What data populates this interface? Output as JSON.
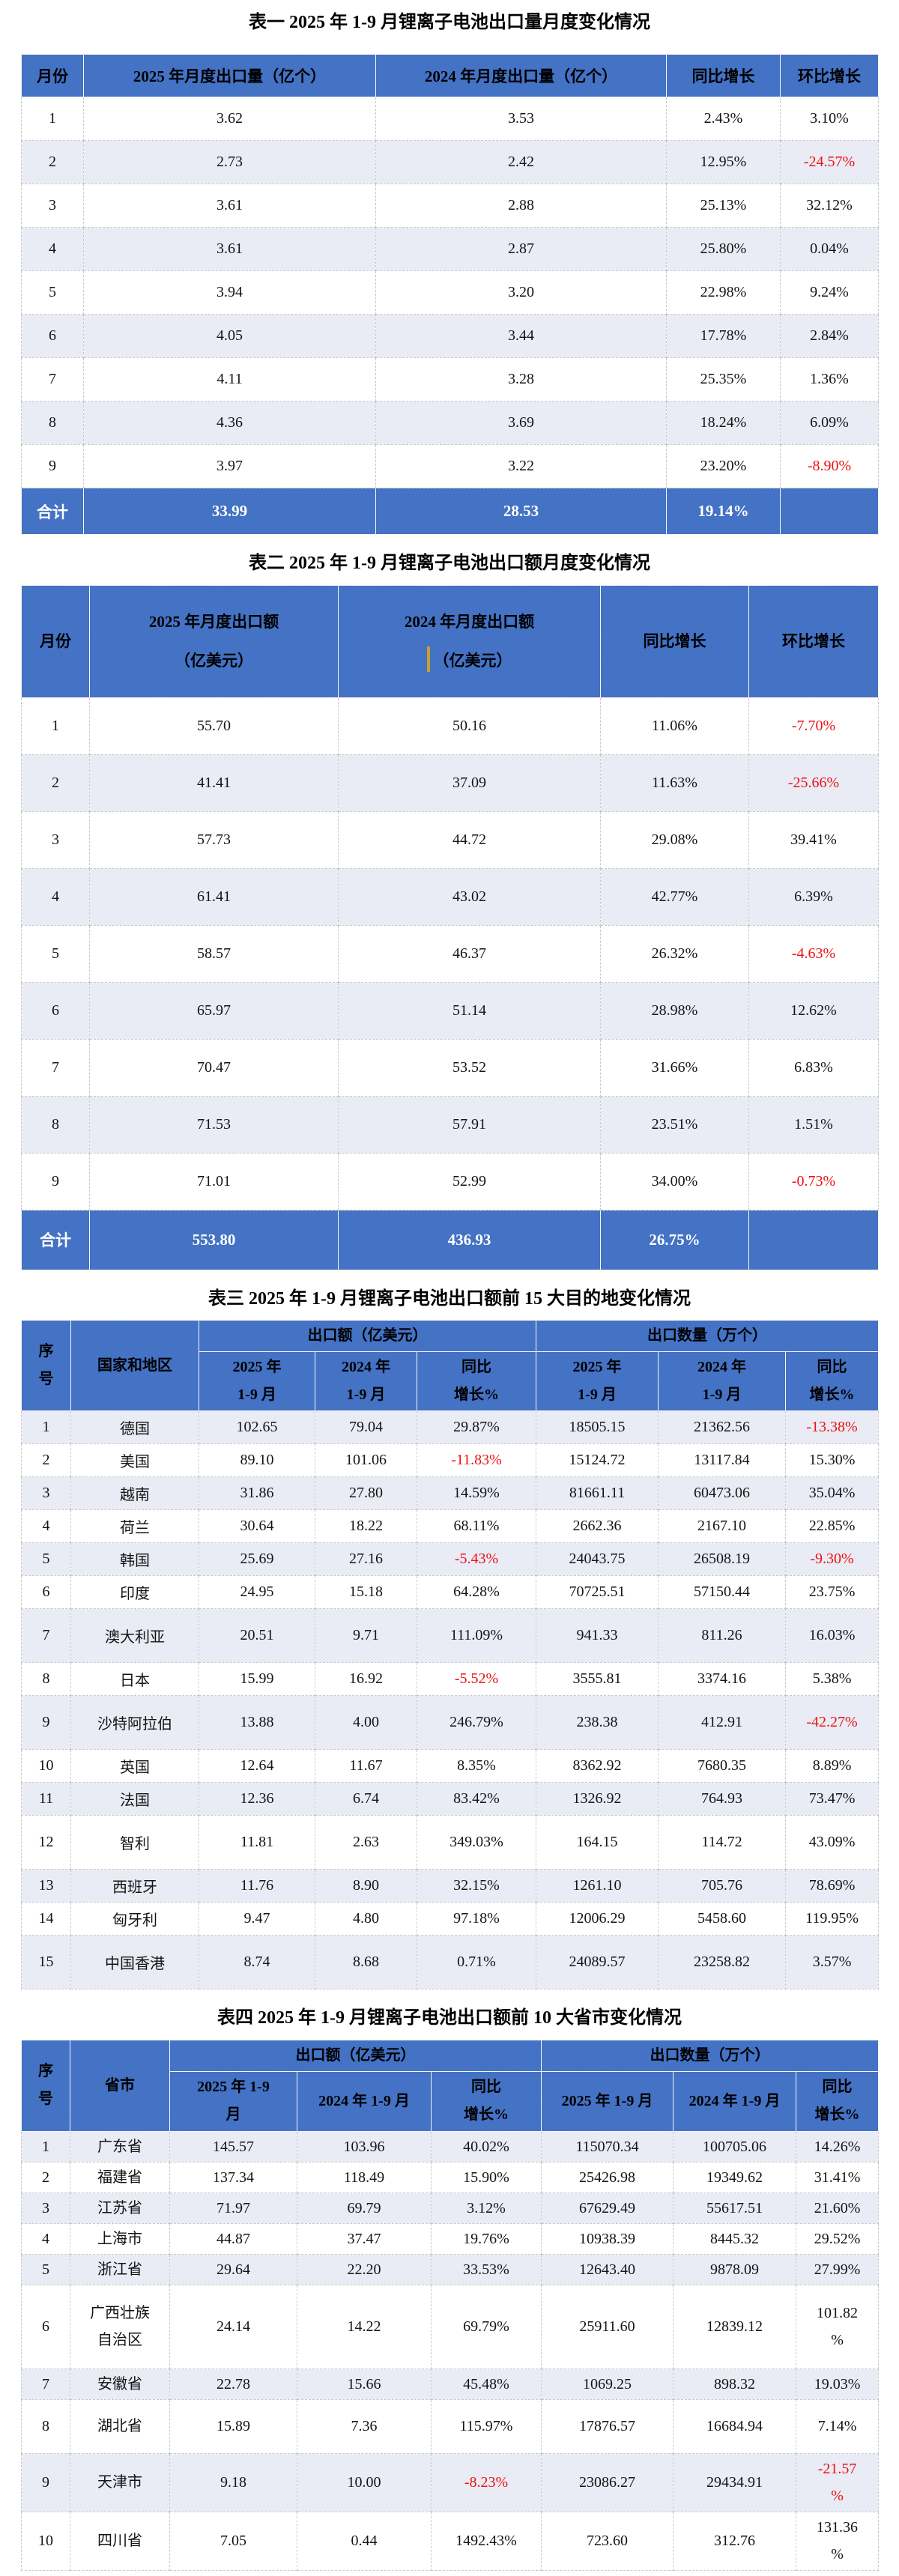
{
  "colors": {
    "header_blue": "#4472C4",
    "row_alt_lavender": "#E9EBF5",
    "negative_red": "#ee1111",
    "total_row_text": "#ffffff",
    "header_text": "#000000",
    "body_text": "#141414",
    "cursor_artifact_gold": "#C9A227"
  },
  "tables": [
    {
      "title": "表一 2025 年 1-9 月锂离子电池出口量月度变化情况",
      "headers": [
        "月份",
        "2025 年月度出口量（亿个）",
        "2024 年月度出口量（亿个）",
        "同比增长",
        "环比增长"
      ],
      "rows": [
        [
          "1",
          "3.62",
          "3.53",
          "2.43%",
          "3.10%"
        ],
        [
          "2",
          "2.73",
          "2.42",
          "12.95%",
          "-24.57%"
        ],
        [
          "3",
          "3.61",
          "2.88",
          "25.13%",
          "32.12%"
        ],
        [
          "4",
          "3.61",
          "2.87",
          "25.80%",
          "0.04%"
        ],
        [
          "5",
          "3.94",
          "3.20",
          "22.98%",
          "9.24%"
        ],
        [
          "6",
          "4.05",
          "3.44",
          "17.78%",
          "2.84%"
        ],
        [
          "7",
          "4.11",
          "3.28",
          "25.35%",
          "1.36%"
        ],
        [
          "8",
          "4.36",
          "3.69",
          "18.24%",
          "6.09%"
        ],
        [
          "9",
          "3.97",
          "3.22",
          "23.20%",
          "-8.90%"
        ]
      ],
      "total_row": [
        "合计",
        "33.99",
        "28.53",
        "19.14%",
        ""
      ]
    },
    {
      "title": "表二 2025 年 1-9 月锂离子电池出口额月度变化情况",
      "headers": [
        "月份",
        "2025 年月度出口额\n（亿美元）",
        "2024 年月度出口额\n（亿美元）",
        "同比增长",
        "环比增长"
      ],
      "header_cursor_index": 2,
      "rows": [
        [
          "1",
          "55.70",
          "50.16",
          "11.06%",
          "-7.70%"
        ],
        [
          "2",
          "41.41",
          "37.09",
          "11.63%",
          "-25.66%"
        ],
        [
          "3",
          "57.73",
          "44.72",
          "29.08%",
          "39.41%"
        ],
        [
          "4",
          "61.41",
          "43.02",
          "42.77%",
          "6.39%"
        ],
        [
          "5",
          "58.57",
          "46.37",
          "26.32%",
          "-4.63%"
        ],
        [
          "6",
          "65.97",
          "51.14",
          "28.98%",
          "12.62%"
        ],
        [
          "7",
          "70.47",
          "53.52",
          "31.66%",
          "6.83%"
        ],
        [
          "8",
          "71.53",
          "57.91",
          "23.51%",
          "1.51%"
        ],
        [
          "9",
          "71.01",
          "52.99",
          "34.00%",
          "-0.73%"
        ]
      ],
      "total_row": [
        "合计",
        "553.80",
        "436.93",
        "26.75%",
        ""
      ]
    },
    {
      "title": "表三 2025 年 1-9 月锂离子电池出口额前 15 大目的地变化情况",
      "corner_headers": [
        "序\n号",
        "国家和地区"
      ],
      "header_groups": [
        {
          "label": "出口额（亿美元）",
          "span": 3
        },
        {
          "label": "出口数量（万个）",
          "span": 3
        }
      ],
      "sub_headers": [
        "2025 年\n1-9 月",
        "2024 年\n1-9 月",
        "同比\n增长%",
        "2025 年\n1-9 月",
        "2024 年\n1-9 月",
        "同比\n增长%"
      ],
      "rows": [
        [
          "1",
          "德国",
          "102.65",
          "79.04",
          "29.87%",
          "18505.15",
          "21362.56",
          "-13.38%"
        ],
        [
          "2",
          "美国",
          "89.10",
          "101.06",
          "-11.83%",
          "15124.72",
          "13117.84",
          "15.30%"
        ],
        [
          "3",
          "越南",
          "31.86",
          "27.80",
          "14.59%",
          "81661.11",
          "60473.06",
          "35.04%"
        ],
        [
          "4",
          "荷兰",
          "30.64",
          "18.22",
          "68.11%",
          "2662.36",
          "2167.10",
          "22.85%"
        ],
        [
          "5",
          "韩国",
          "25.69",
          "27.16",
          "-5.43%",
          "24043.75",
          "26508.19",
          "-9.30%"
        ],
        [
          "6",
          "印度",
          "24.95",
          "15.18",
          "64.28%",
          "70725.51",
          "57150.44",
          "23.75%"
        ],
        [
          "7",
          "澳大利亚",
          "20.51",
          "9.71",
          "111.09%",
          "941.33",
          "811.26",
          "16.03%"
        ],
        [
          "8",
          "日本",
          "15.99",
          "16.92",
          "-5.52%",
          "3555.81",
          "3374.16",
          "5.38%"
        ],
        [
          "9",
          "沙特阿拉伯",
          "13.88",
          "4.00",
          "246.79%",
          "238.38",
          "412.91",
          "-42.27%"
        ],
        [
          "10",
          "英国",
          "12.64",
          "11.67",
          "8.35%",
          "8362.92",
          "7680.35",
          "8.89%"
        ],
        [
          "11",
          "法国",
          "12.36",
          "6.74",
          "83.42%",
          "1326.92",
          "764.93",
          "73.47%"
        ],
        [
          "12",
          "智利",
          "11.81",
          "2.63",
          "349.03%",
          "164.15",
          "114.72",
          "43.09%"
        ],
        [
          "13",
          "西班牙",
          "11.76",
          "8.90",
          "32.15%",
          "1261.10",
          "705.76",
          "78.69%"
        ],
        [
          "14",
          "匈牙利",
          "9.47",
          "4.80",
          "97.18%",
          "12006.29",
          "5458.60",
          "119.95%"
        ],
        [
          "15",
          "中国香港",
          "8.74",
          "8.68",
          "0.71%",
          "24089.57",
          "23258.82",
          "3.57%"
        ]
      ]
    },
    {
      "title": "表四 2025 年 1-9 月锂离子电池出口额前 10 大省市变化情况",
      "corner_headers": [
        "序\n号",
        "省市"
      ],
      "header_groups": [
        {
          "label": "出口额（亿美元）",
          "span": 3
        },
        {
          "label": "出口数量（万个）",
          "span": 3
        }
      ],
      "sub_headers": [
        "2025 年 1-9\n月",
        "2024 年 1-9 月",
        "同比\n增长%",
        "2025 年 1-9 月",
        "2024 年 1-9 月",
        "同比\n增长%"
      ],
      "rows": [
        [
          "1",
          "广东省",
          "145.57",
          "103.96",
          "40.02%",
          "115070.34",
          "100705.06",
          "14.26%"
        ],
        [
          "2",
          "福建省",
          "137.34",
          "118.49",
          "15.90%",
          "25426.98",
          "19349.62",
          "31.41%"
        ],
        [
          "3",
          "江苏省",
          "71.97",
          "69.79",
          "3.12%",
          "67629.49",
          "55617.51",
          "21.60%"
        ],
        [
          "4",
          "上海市",
          "44.87",
          "37.47",
          "19.76%",
          "10938.39",
          "8445.32",
          "29.52%"
        ],
        [
          "5",
          "浙江省",
          "29.64",
          "22.20",
          "33.53%",
          "12643.40",
          "9878.09",
          "27.99%"
        ],
        [
          "6",
          "广西壮族\n自治区",
          "24.14",
          "14.22",
          "69.79%",
          "25911.60",
          "12839.12",
          "101.82\n%"
        ],
        [
          "7",
          "安徽省",
          "22.78",
          "15.66",
          "45.48%",
          "1069.25",
          "898.32",
          "19.03%"
        ],
        [
          "8",
          "湖北省",
          "15.89",
          "7.36",
          "115.97%",
          "17876.57",
          "16684.94",
          "7.14%"
        ],
        [
          "9",
          "天津市",
          "9.18",
          "10.00",
          "-8.23%",
          "23086.27",
          "29434.91",
          "-21.57\n%"
        ],
        [
          "10",
          "四川省",
          "7.05",
          "0.44",
          "1492.43%",
          "723.60",
          "312.76",
          "131.36\n%"
        ]
      ]
    }
  ]
}
